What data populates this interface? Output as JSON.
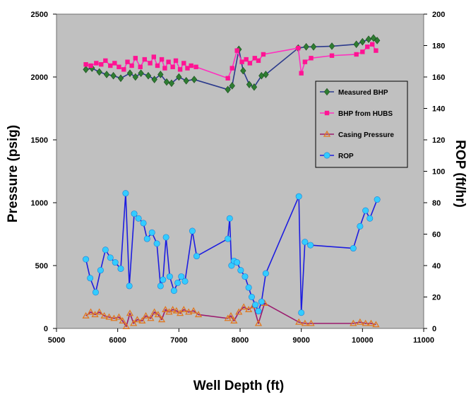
{
  "chart_data": {
    "type": "line",
    "xlabel": "Well Depth (ft)",
    "ylabel": "Pressure (psig)",
    "y2label": "ROP (ft/hr)",
    "xlim": [
      5000,
      11000
    ],
    "ylim": [
      0,
      2500
    ],
    "y2lim": [
      0,
      200
    ],
    "xticks": [
      "5000",
      "6000",
      "7000",
      "8000",
      "9000",
      "10000",
      "11000"
    ],
    "yticks": [
      "0",
      "500",
      "1000",
      "1500",
      "2000",
      "2500"
    ],
    "y2ticks": [
      "0",
      "20",
      "40",
      "60",
      "80",
      "100",
      "120",
      "140",
      "160",
      "180",
      "200"
    ],
    "grid": false,
    "legend_position": "right",
    "plot_background": "#c0c0c0",
    "series": [
      {
        "name": "Measured BHP",
        "axis": "left",
        "color": "#2b3a8c",
        "marker_color": "#2e7d32",
        "marker": "diamond",
        "points": [
          [
            5480,
            2060
          ],
          [
            5580,
            2070
          ],
          [
            5700,
            2040
          ],
          [
            5820,
            2020
          ],
          [
            5930,
            2010
          ],
          [
            6050,
            1990
          ],
          [
            6200,
            2030
          ],
          [
            6290,
            2000
          ],
          [
            6380,
            2030
          ],
          [
            6500,
            2010
          ],
          [
            6600,
            1980
          ],
          [
            6700,
            2020
          ],
          [
            6800,
            1960
          ],
          [
            6880,
            1950
          ],
          [
            7000,
            2000
          ],
          [
            7120,
            1970
          ],
          [
            7250,
            1980
          ],
          [
            7800,
            1900
          ],
          [
            7870,
            1930
          ],
          [
            7980,
            2220
          ],
          [
            8050,
            2050
          ],
          [
            8150,
            1940
          ],
          [
            8230,
            1920
          ],
          [
            8350,
            2010
          ],
          [
            8420,
            2020
          ],
          [
            8950,
            2230
          ],
          [
            9080,
            2240
          ],
          [
            9200,
            2240
          ],
          [
            9500,
            2245
          ],
          [
            9900,
            2260
          ],
          [
            10000,
            2280
          ],
          [
            10100,
            2300
          ],
          [
            10180,
            2310
          ],
          [
            10240,
            2290
          ]
        ]
      },
      {
        "name": "BHP from HUBS",
        "axis": "left",
        "color": "#ff2fbf",
        "marker_color": "#ff1493",
        "marker": "square",
        "points": [
          [
            5480,
            2100
          ],
          [
            5560,
            2090
          ],
          [
            5650,
            2110
          ],
          [
            5730,
            2100
          ],
          [
            5800,
            2130
          ],
          [
            5880,
            2090
          ],
          [
            5950,
            2110
          ],
          [
            6020,
            2080
          ],
          [
            6100,
            2060
          ],
          [
            6160,
            2120
          ],
          [
            6230,
            2090
          ],
          [
            6290,
            2150
          ],
          [
            6370,
            2080
          ],
          [
            6440,
            2140
          ],
          [
            6530,
            2110
          ],
          [
            6590,
            2160
          ],
          [
            6650,
            2090
          ],
          [
            6720,
            2140
          ],
          [
            6770,
            2070
          ],
          [
            6830,
            2120
          ],
          [
            6900,
            2080
          ],
          [
            6950,
            2130
          ],
          [
            7020,
            2060
          ],
          [
            7080,
            2110
          ],
          [
            7140,
            2070
          ],
          [
            7200,
            2090
          ],
          [
            7280,
            2080
          ],
          [
            7800,
            1990
          ],
          [
            7870,
            2070
          ],
          [
            7950,
            2210
          ],
          [
            8030,
            2120
          ],
          [
            8100,
            2140
          ],
          [
            8160,
            2110
          ],
          [
            8240,
            2150
          ],
          [
            8300,
            2130
          ],
          [
            8380,
            2180
          ],
          [
            8950,
            2230
          ],
          [
            9000,
            2030
          ],
          [
            9060,
            2120
          ],
          [
            9160,
            2150
          ],
          [
            9500,
            2170
          ],
          [
            9900,
            2180
          ],
          [
            10000,
            2200
          ],
          [
            10080,
            2240
          ],
          [
            10160,
            2260
          ],
          [
            10220,
            2210
          ]
        ]
      },
      {
        "name": "Casing Pressure",
        "axis": "left",
        "color": "#9b1b6e",
        "marker_color": "#e07820",
        "marker": "triangle",
        "points": [
          [
            5480,
            100
          ],
          [
            5560,
            130
          ],
          [
            5630,
            110
          ],
          [
            5700,
            130
          ],
          [
            5780,
            100
          ],
          [
            5860,
            90
          ],
          [
            5940,
            80
          ],
          [
            6020,
            90
          ],
          [
            6080,
            60
          ],
          [
            6140,
            15
          ],
          [
            6200,
            120
          ],
          [
            6260,
            40
          ],
          [
            6320,
            70
          ],
          [
            6400,
            60
          ],
          [
            6460,
            100
          ],
          [
            6540,
            80
          ],
          [
            6600,
            130
          ],
          [
            6660,
            110
          ],
          [
            6720,
            70
          ],
          [
            6780,
            150
          ],
          [
            6840,
            130
          ],
          [
            6900,
            150
          ],
          [
            6960,
            140
          ],
          [
            7020,
            120
          ],
          [
            7080,
            150
          ],
          [
            7160,
            130
          ],
          [
            7240,
            140
          ],
          [
            7320,
            110
          ],
          [
            7800,
            80
          ],
          [
            7850,
            100
          ],
          [
            7900,
            60
          ],
          [
            7980,
            130
          ],
          [
            8060,
            170
          ],
          [
            8140,
            150
          ],
          [
            8220,
            180
          ],
          [
            8300,
            40
          ],
          [
            8400,
            200
          ],
          [
            8960,
            50
          ],
          [
            9060,
            40
          ],
          [
            9160,
            40
          ],
          [
            9850,
            40
          ],
          [
            9960,
            50
          ],
          [
            10050,
            40
          ],
          [
            10140,
            40
          ],
          [
            10220,
            30
          ]
        ]
      },
      {
        "name": "ROP",
        "axis": "right",
        "color": "#1c1ce0",
        "marker_color": "#33ccff",
        "marker": "circle",
        "points": [
          [
            5480,
            44
          ],
          [
            5550,
            32
          ],
          [
            5640,
            23
          ],
          [
            5720,
            37
          ],
          [
            5800,
            50
          ],
          [
            5880,
            45
          ],
          [
            5960,
            42
          ],
          [
            6050,
            38
          ],
          [
            6130,
            86
          ],
          [
            6190,
            27
          ],
          [
            6270,
            73
          ],
          [
            6340,
            70
          ],
          [
            6420,
            67
          ],
          [
            6480,
            57
          ],
          [
            6560,
            61
          ],
          [
            6640,
            54
          ],
          [
            6700,
            27
          ],
          [
            6740,
            31
          ],
          [
            6790,
            58
          ],
          [
            6850,
            33
          ],
          [
            6920,
            24
          ],
          [
            6980,
            29
          ],
          [
            7040,
            33
          ],
          [
            7100,
            30
          ],
          [
            7220,
            62
          ],
          [
            7290,
            46
          ],
          [
            7800,
            57
          ],
          [
            7830,
            70
          ],
          [
            7860,
            40
          ],
          [
            7900,
            43
          ],
          [
            7950,
            42
          ],
          [
            8010,
            37
          ],
          [
            8080,
            33
          ],
          [
            8140,
            26
          ],
          [
            8190,
            20
          ],
          [
            8250,
            15
          ],
          [
            8300,
            11
          ],
          [
            8350,
            17
          ],
          [
            8420,
            35
          ],
          [
            8960,
            84
          ],
          [
            9000,
            10
          ],
          [
            9060,
            55
          ],
          [
            9150,
            53
          ],
          [
            9850,
            51
          ],
          [
            9960,
            65
          ],
          [
            10050,
            75
          ],
          [
            10120,
            70
          ],
          [
            10240,
            82
          ]
        ]
      }
    ]
  }
}
